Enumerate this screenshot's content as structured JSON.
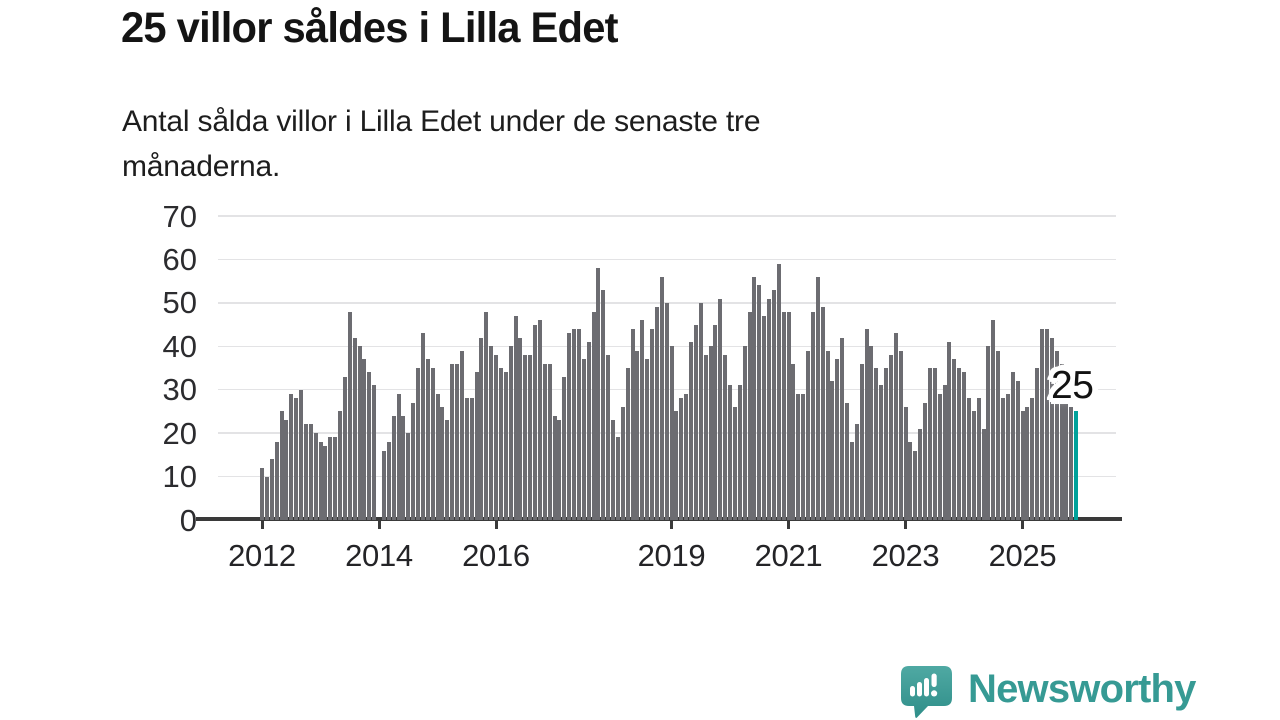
{
  "chart_data": {
    "type": "bar",
    "title": "25 villor såldes i Lilla Edet",
    "subtitle": "Antal sålda villor i Lilla Edet under de senaste tre månaderna.",
    "subtitle_lines": [
      "Antal sålda villor i Lilla Edet under de senaste tre",
      "månaderna."
    ],
    "xlabel": "",
    "ylabel": "",
    "frequency": "monthly",
    "x_start_label": "2012",
    "ylim": [
      0,
      70
    ],
    "grid": true,
    "legend": "none",
    "y_ticks": [
      0,
      10,
      20,
      30,
      40,
      50,
      60,
      70
    ],
    "x_ticks": [
      {
        "label": "2012",
        "month_index": 0
      },
      {
        "label": "2014",
        "month_index": 24
      },
      {
        "label": "2016",
        "month_index": 48
      },
      {
        "label": "2019",
        "month_index": 84
      },
      {
        "label": "2021",
        "month_index": 108
      },
      {
        "label": "2023",
        "month_index": 132
      },
      {
        "label": "2025",
        "month_index": 156
      }
    ],
    "values": [
      12,
      10,
      14,
      18,
      25,
      23,
      29,
      28,
      30,
      22,
      22,
      20,
      18,
      17,
      19,
      19,
      25,
      33,
      48,
      42,
      40,
      37,
      34,
      31,
      0,
      16,
      18,
      24,
      29,
      24,
      20,
      27,
      35,
      43,
      37,
      35,
      29,
      26,
      23,
      36,
      36,
      39,
      28,
      28,
      34,
      42,
      48,
      40,
      38,
      35,
      34,
      40,
      47,
      42,
      38,
      38,
      45,
      46,
      36,
      36,
      24,
      23,
      33,
      43,
      44,
      44,
      37,
      41,
      48,
      58,
      53,
      38,
      23,
      19,
      26,
      35,
      44,
      39,
      46,
      37,
      44,
      49,
      56,
      50,
      40,
      25,
      28,
      29,
      41,
      45,
      50,
      38,
      40,
      45,
      51,
      38,
      31,
      26,
      31,
      40,
      48,
      56,
      54,
      47,
      51,
      53,
      59,
      48,
      48,
      36,
      29,
      29,
      39,
      48,
      56,
      49,
      39,
      32,
      37,
      42,
      27,
      18,
      22,
      36,
      44,
      40,
      35,
      31,
      35,
      38,
      43,
      39,
      26,
      18,
      16,
      21,
      27,
      35,
      35,
      29,
      31,
      41,
      37,
      35,
      34,
      28,
      25,
      28,
      21,
      40,
      46,
      39,
      28,
      29,
      34,
      32,
      25,
      26,
      28,
      35,
      44,
      44,
      42,
      39,
      36,
      28,
      26,
      25
    ],
    "highlight": {
      "index": 167,
      "value": 25,
      "label": "25",
      "color": "#00a19a"
    },
    "colors": {
      "bar": "#6c6c71",
      "highlight_bar": "#00a19a",
      "gridline": "#e3e3e5",
      "axis": "#3a3a3a",
      "axis_text": "#2c2c2f",
      "title_text": "#141414"
    }
  },
  "footer": {
    "brand": "Newsworthy",
    "brand_color": "#369a94",
    "icon": "newsworthy-speech-bubble-bar-chart-icon"
  }
}
